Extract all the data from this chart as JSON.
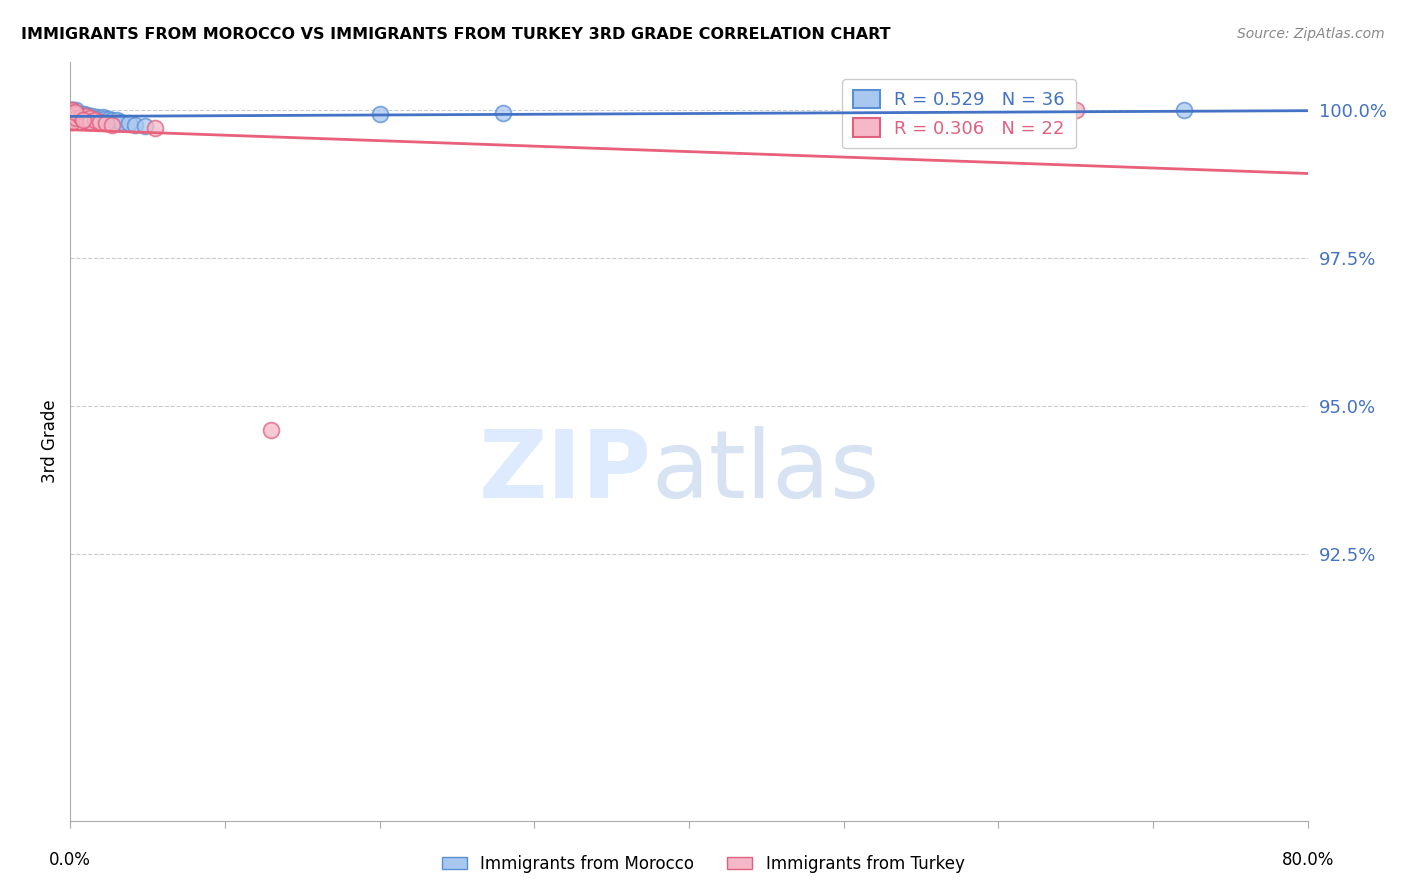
{
  "title": "IMMIGRANTS FROM MOROCCO VS IMMIGRANTS FROM TURKEY 3RD GRADE CORRELATION CHART",
  "source": "Source: ZipAtlas.com",
  "ylabel": "3rd Grade",
  "ytick_labels": [
    "100.0%",
    "97.5%",
    "95.0%",
    "92.5%"
  ],
  "ytick_values": [
    1.0,
    0.975,
    0.95,
    0.925
  ],
  "xlim": [
    0.0,
    0.8
  ],
  "ylim": [
    0.88,
    1.008
  ],
  "ylim_display": [
    0.8,
    1.008
  ],
  "grid_lines": [
    1.0,
    0.975,
    0.95,
    0.925
  ],
  "legend_r1": "R = 0.529",
  "legend_n1": "N = 36",
  "legend_r2": "R = 0.306",
  "legend_n2": "N = 22",
  "color_morocco_fill": "#A8C8F0",
  "color_morocco_edge": "#5A8FD4",
  "color_turkey_fill": "#F5B8C8",
  "color_turkey_edge": "#E06080",
  "color_line_morocco": "#4472C4",
  "color_line_turkey": "#E8607A",
  "label_morocco": "Immigrants from Morocco",
  "label_turkey": "Immigrants from Turkey",
  "watermark_zip": "ZIP",
  "watermark_atlas": "atlas",
  "morocco_x": [
    0.001,
    0.001,
    0.001,
    0.001,
    0.001,
    0.001,
    0.004,
    0.004,
    0.004,
    0.006,
    0.006,
    0.007,
    0.009,
    0.009,
    0.009,
    0.011,
    0.011,
    0.012,
    0.012,
    0.014,
    0.014,
    0.015,
    0.017,
    0.018,
    0.021,
    0.022,
    0.025,
    0.027,
    0.03,
    0.033,
    0.038,
    0.042,
    0.048,
    0.2,
    0.28,
    0.72
  ],
  "morocco_y": [
    1.0,
    1.0,
    1.0,
    0.9998,
    0.9998,
    0.9995,
    1.0,
    0.9995,
    0.9992,
    0.9993,
    0.999,
    0.9988,
    0.9993,
    0.999,
    0.9987,
    0.9992,
    0.9987,
    0.999,
    0.9985,
    0.999,
    0.9985,
    0.9983,
    0.9988,
    0.9985,
    0.9988,
    0.9985,
    0.9985,
    0.9983,
    0.9982,
    0.998,
    0.9978,
    0.9975,
    0.9972,
    0.9993,
    0.9995,
    1.0
  ],
  "turkey_x": [
    0.001,
    0.001,
    0.001,
    0.001,
    0.001,
    0.004,
    0.004,
    0.007,
    0.008,
    0.01,
    0.01,
    0.013,
    0.013,
    0.016,
    0.019,
    0.023,
    0.027,
    0.055,
    0.13,
    0.65,
    0.003,
    0.008
  ],
  "turkey_y": [
    1.0,
    0.9995,
    0.999,
    0.9985,
    0.998,
    0.9993,
    0.9987,
    0.9988,
    0.9985,
    0.999,
    0.9983,
    0.9987,
    0.998,
    0.9983,
    0.998,
    0.9978,
    0.9975,
    0.997,
    0.946,
    1.0,
    0.9997,
    0.9982
  ]
}
